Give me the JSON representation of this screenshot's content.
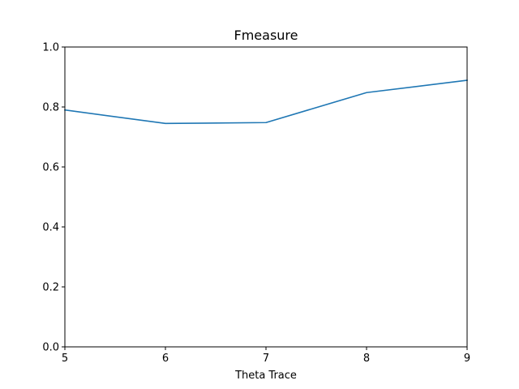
{
  "chart_data": {
    "type": "line",
    "title": "Fmeasure",
    "xlabel": "Theta Trace",
    "ylabel": "",
    "xlim": [
      5,
      9
    ],
    "ylim": [
      0.0,
      1.0
    ],
    "xticks": [
      5,
      6,
      7,
      8,
      9
    ],
    "yticks": [
      0.0,
      0.2,
      0.4,
      0.6,
      0.8,
      1.0
    ],
    "xtick_labels": [
      "5",
      "6",
      "7",
      "8",
      "9"
    ],
    "ytick_labels": [
      "0.0",
      "0.2",
      "0.4",
      "0.6",
      "0.8",
      "1.0"
    ],
    "grid": false,
    "series": [
      {
        "color": "#1f77b4",
        "x": [
          5,
          6,
          7,
          8,
          9
        ],
        "y": [
          0.79,
          0.745,
          0.748,
          0.848,
          0.889
        ]
      }
    ]
  }
}
